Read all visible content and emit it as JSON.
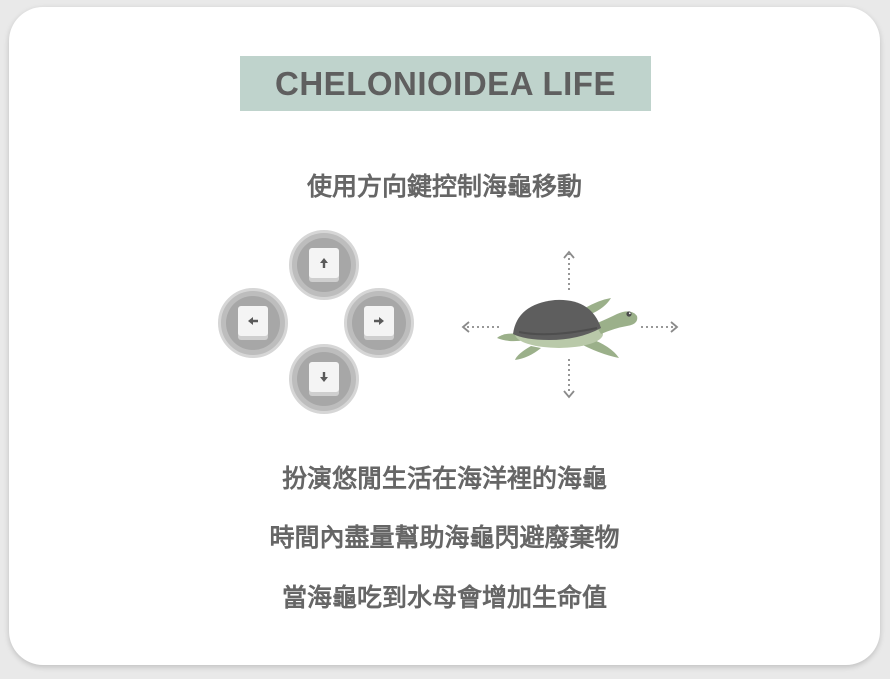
{
  "title": "CHELONIOIDEA LIFE",
  "instruction": "使用方向鍵控制海龜移動",
  "controls": {
    "keys": [
      {
        "direction": "up",
        "icon": "arrow-up-icon"
      },
      {
        "direction": "left",
        "icon": "arrow-left-icon"
      },
      {
        "direction": "right",
        "icon": "arrow-right-icon"
      },
      {
        "direction": "down",
        "icon": "arrow-down-icon"
      }
    ]
  },
  "description": [
    "扮演悠閒生活在海洋裡的海龜",
    "時間內盡量幫助海龜閃避廢棄物",
    "當海龜吃到水母會增加生命值"
  ],
  "colors": {
    "title_bg": "#bfd3cc",
    "text": "#666666",
    "turtle_shell": "#5e5e5e",
    "turtle_skin": "#9bb08a"
  }
}
